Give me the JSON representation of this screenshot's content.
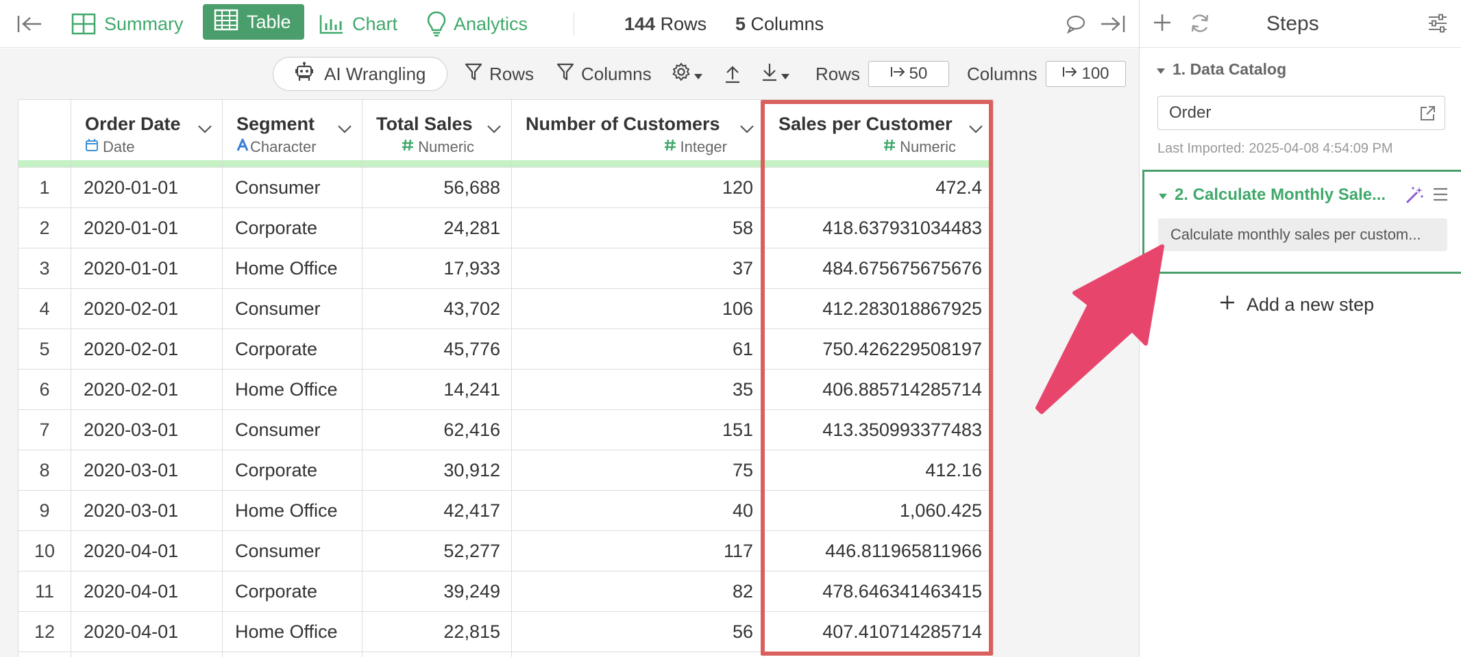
{
  "topbar": {
    "tabs": [
      {
        "label": "Summary",
        "icon": "summary-grid-icon"
      },
      {
        "label": "Table",
        "icon": "table-icon",
        "active": true
      },
      {
        "label": "Chart",
        "icon": "bar-chart-icon"
      },
      {
        "label": "Analytics",
        "icon": "lightbulb-icon"
      }
    ],
    "rows_count": "144",
    "rows_label": "Rows",
    "cols_count": "5",
    "cols_label": "Columns"
  },
  "toolbar": {
    "ai_wrangling": "AI Wrangling",
    "rows_filter": "Rows",
    "columns_filter": "Columns",
    "rows_label": "Rows",
    "rows_value": "50",
    "columns_label": "Columns",
    "columns_value": "100"
  },
  "table": {
    "columns": [
      {
        "name": "Order Date",
        "type": "Date",
        "type_icon": "calendar-icon"
      },
      {
        "name": "Segment",
        "type": "Character",
        "type_icon": "character-type-icon"
      },
      {
        "name": "Total Sales",
        "type": "Numeric",
        "type_icon": "hash-icon"
      },
      {
        "name": "Number of Customers",
        "type": "Integer",
        "type_icon": "hash-icon"
      },
      {
        "name": "Sales per Customer",
        "type": "Numeric",
        "type_icon": "hash-icon"
      }
    ],
    "rows": [
      [
        "1",
        "2020-01-01",
        "Consumer",
        "56,688",
        "120",
        "472.4"
      ],
      [
        "2",
        "2020-01-01",
        "Corporate",
        "24,281",
        "58",
        "418.637931034483"
      ],
      [
        "3",
        "2020-01-01",
        "Home Office",
        "17,933",
        "37",
        "484.675675675676"
      ],
      [
        "4",
        "2020-02-01",
        "Consumer",
        "43,702",
        "106",
        "412.283018867925"
      ],
      [
        "5",
        "2020-02-01",
        "Corporate",
        "45,776",
        "61",
        "750.426229508197"
      ],
      [
        "6",
        "2020-02-01",
        "Home Office",
        "14,241",
        "35",
        "406.885714285714"
      ],
      [
        "7",
        "2020-03-01",
        "Consumer",
        "62,416",
        "151",
        "413.350993377483"
      ],
      [
        "8",
        "2020-03-01",
        "Corporate",
        "30,912",
        "75",
        "412.16"
      ],
      [
        "9",
        "2020-03-01",
        "Home Office",
        "42,417",
        "40",
        "1,060.425"
      ],
      [
        "10",
        "2020-04-01",
        "Consumer",
        "52,277",
        "117",
        "446.811965811966"
      ],
      [
        "11",
        "2020-04-01",
        "Corporate",
        "39,249",
        "82",
        "478.646341463415"
      ],
      [
        "12",
        "2020-04-01",
        "Home Office",
        "22,815",
        "56",
        "407.410714285714"
      ]
    ]
  },
  "steps": {
    "title": "Steps",
    "step1": {
      "title": "1. Data Catalog",
      "source": "Order",
      "last_imported": "Last Imported: 2025-04-08 4:54:09 PM"
    },
    "step2": {
      "title": "2. Calculate Monthly Sale...",
      "description": "Calculate monthly sales per custom..."
    },
    "add_step": "Add a new step"
  },
  "colors": {
    "brand_green": "#4a9e6b",
    "header_stripe": "#c4f2c4",
    "highlight_red": "#d9605c",
    "arrow_pink": "#e8456d"
  }
}
